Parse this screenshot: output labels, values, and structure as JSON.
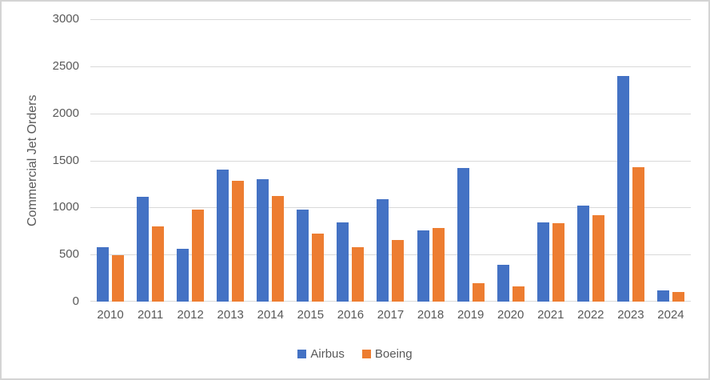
{
  "chart_data": {
    "type": "bar",
    "title": "",
    "xlabel": "",
    "ylabel": "Commercial Jet Orders",
    "categories": [
      "2010",
      "2011",
      "2012",
      "2013",
      "2014",
      "2015",
      "2016",
      "2017",
      "2018",
      "2019",
      "2020",
      "2021",
      "2022",
      "2023",
      "2024"
    ],
    "series": [
      {
        "name": "Airbus",
        "color": "#4472C4",
        "values": [
          575,
          1115,
          565,
          1405,
          1300,
          975,
          840,
          1090,
          760,
          1420,
          395,
          840,
          1020,
          2395,
          115
        ]
      },
      {
        "name": "Boeing",
        "color": "#ED7D31",
        "values": [
          490,
          795,
          975,
          1280,
          1120,
          725,
          580,
          655,
          780,
          195,
          160,
          835,
          915,
          1430,
          100
        ]
      }
    ],
    "ylim": [
      0,
      3000
    ],
    "yticks": [
      0,
      500,
      1000,
      1500,
      2000,
      2500,
      3000
    ],
    "grid": true,
    "legend_position": "bottom"
  },
  "colors": {
    "airbus": "#4472C4",
    "boeing": "#ED7D31",
    "text": "#595959",
    "gridline": "#d9d9d9",
    "border": "#d4d4d4"
  }
}
